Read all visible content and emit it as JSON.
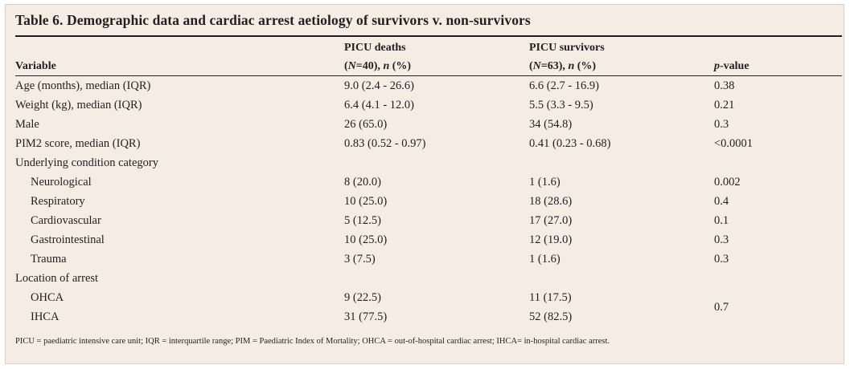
{
  "title": "Table 6. Demographic data and cardiac arrest aetiology of survivors v. non-survivors",
  "headers": {
    "variable": "Variable",
    "deaths_line1": "PICU deaths",
    "deaths_open": "(",
    "deaths_N": "N",
    "deaths_count": "=40), ",
    "deaths_n": "n",
    "deaths_pct": " (%)",
    "survivors_line1": "PICU survivors",
    "survivors_open": "(",
    "survivors_N": "N",
    "survivors_count": "=63), ",
    "survivors_n": "n",
    "survivors_pct": " (%)",
    "p_italic": "p",
    "p_rest": "-value"
  },
  "rows": [
    {
      "variable": "Age (months), median (IQR)",
      "deaths": "9.0 (2.4 - 26.6)",
      "survivors": "6.6 (2.7 - 16.9)",
      "p": "0.38"
    },
    {
      "variable": "Weight (kg), median (IQR)",
      "deaths": "6.4 (4.1 - 12.0)",
      "survivors": "5.5 (3.3 - 9.5)",
      "p": "0.21"
    },
    {
      "variable": "Male",
      "deaths": "26 (65.0)",
      "survivors": "34 (54.8)",
      "p": "0.3"
    },
    {
      "variable": "PIM2 score, median (IQR)",
      "deaths": "0.83 (0.52 - 0.97)",
      "survivors": "0.41 (0.23 - 0.68)",
      "p": "<0.0001"
    },
    {
      "variable": "Underlying condition category",
      "deaths": "",
      "survivors": "",
      "p": ""
    },
    {
      "variable": "Neurological",
      "deaths": "8 (20.0)",
      "survivors": "1 (1.6)",
      "p": "0.002"
    },
    {
      "variable": "Respiratory",
      "deaths": "10 (25.0)",
      "survivors": "18 (28.6)",
      "p": "0.4"
    },
    {
      "variable": "Cardiovascular",
      "deaths": "5 (12.5)",
      "survivors": "17 (27.0)",
      "p": "0.1"
    },
    {
      "variable": "Gastrointestinal",
      "deaths": "10 (25.0)",
      "survivors": "12 (19.0)",
      "p": "0.3"
    },
    {
      "variable": "Trauma",
      "deaths": "3 (7.5)",
      "survivors": "1 (1.6)",
      "p": "0.3"
    },
    {
      "variable": "Location of arrest",
      "deaths": "",
      "survivors": "",
      "p": ""
    },
    {
      "variable": "OHCA",
      "deaths": "9 (22.5)",
      "survivors": "11 (17.5)",
      "p": ""
    },
    {
      "variable": "IHCA",
      "deaths": "31 (77.5)",
      "survivors": "52 (82.5)",
      "p": ""
    }
  ],
  "location_p": "0.7",
  "footnote": "PICU = paediatric intensive care unit; IQR = interquartile range; PIM = Paediatric Index of Mortality; OHCA = out-of-hospital cardiac arrest; IHCA= in-hospital cardiac arrest."
}
